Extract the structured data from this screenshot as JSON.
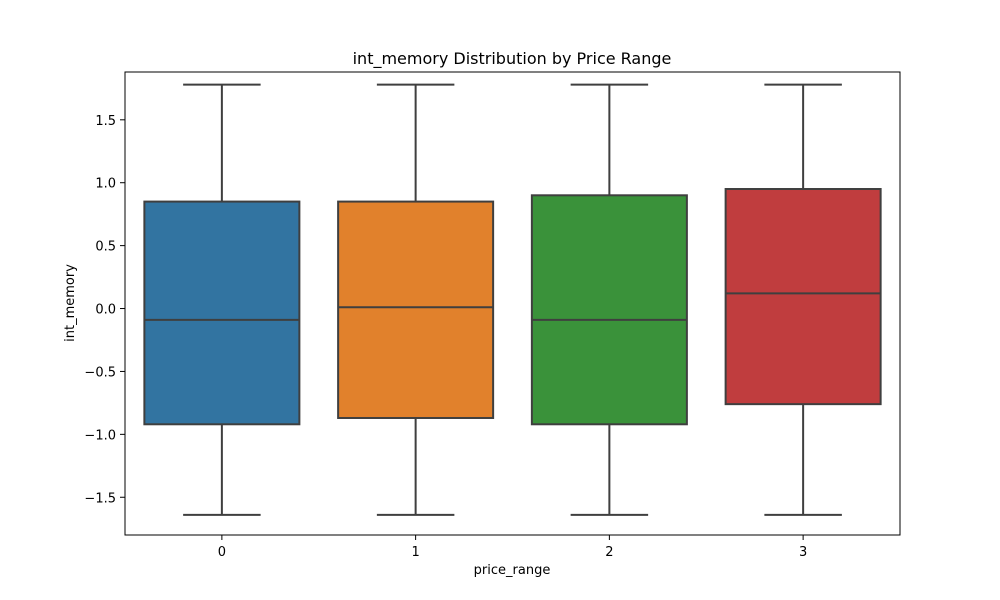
{
  "chart_data": {
    "type": "box",
    "title": "int_memory Distribution by Price Range",
    "xlabel": "price_range",
    "ylabel": "int_memory",
    "categories": [
      "0",
      "1",
      "2",
      "3"
    ],
    "ylim": [
      -1.8,
      1.88
    ],
    "yticks": [
      -1.5,
      -1.0,
      -0.5,
      0.0,
      0.5,
      1.0,
      1.5
    ],
    "ytick_labels": [
      "−1.5",
      "−1.0",
      "−0.5",
      "0.0",
      "0.5",
      "1.0",
      "1.5"
    ],
    "grid": false,
    "boxes": [
      {
        "category": "0",
        "min": -1.64,
        "q1": -0.92,
        "median": -0.09,
        "q3": 0.85,
        "max": 1.78,
        "color": "#3274a1"
      },
      {
        "category": "1",
        "min": -1.64,
        "q1": -0.87,
        "median": 0.01,
        "q3": 0.85,
        "max": 1.78,
        "color": "#e1812c"
      },
      {
        "category": "2",
        "min": -1.64,
        "q1": -0.92,
        "median": -0.09,
        "q3": 0.9,
        "max": 1.78,
        "color": "#3a923a"
      },
      {
        "category": "3",
        "min": -1.64,
        "q1": -0.76,
        "median": 0.12,
        "q3": 0.95,
        "max": 1.78,
        "color": "#c03d3e"
      }
    ],
    "line_color": "#3f3f3f"
  }
}
